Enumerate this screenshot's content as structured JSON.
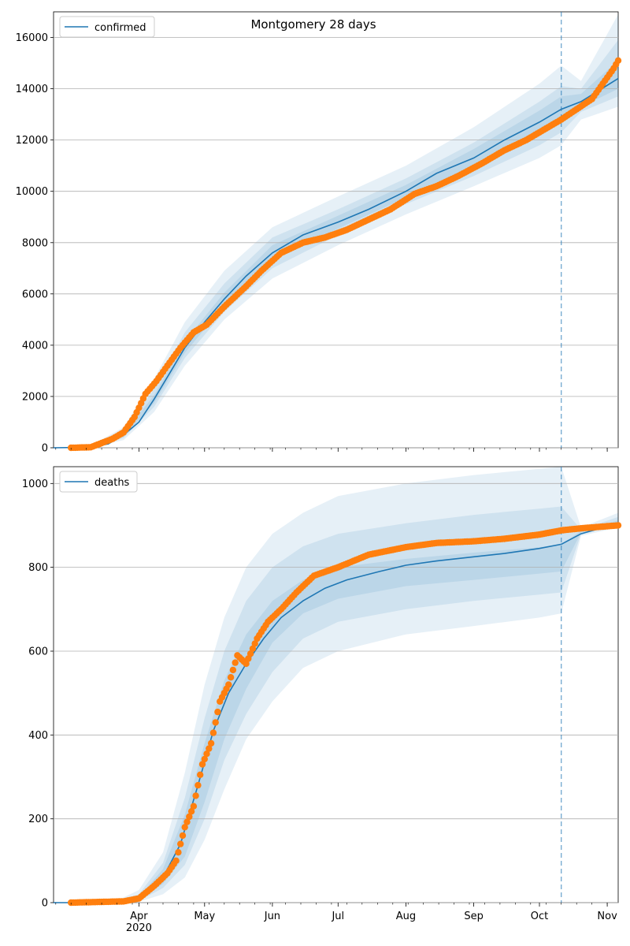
{
  "figure": {
    "title": "Montgomery 28 days"
  },
  "colors": {
    "model": "#1f77b4",
    "observed": "#ff7f0e",
    "grid": "#b0b0b0",
    "band": "#1f77b4"
  },
  "chart_data": [
    {
      "type": "line",
      "name": "confirmed",
      "xaxis_type": "date",
      "xlim": [
        "2020-02-22",
        "2020-11-06"
      ],
      "ylim": [
        0,
        17000
      ],
      "y_ticks": [
        0,
        2000,
        4000,
        6000,
        8000,
        10000,
        12000,
        14000,
        16000
      ],
      "x_tick_labels_shown": false,
      "grid": "horizontal",
      "legend": {
        "position": "top-left",
        "entries": [
          "confirmed"
        ]
      },
      "forecast_start": "2020-10-11",
      "series": [
        {
          "name": "confirmed",
          "kind": "model-median",
          "x": [
            "2020-02-22",
            "2020-03-10",
            "2020-03-18",
            "2020-03-25",
            "2020-04-01",
            "2020-04-08",
            "2020-04-15",
            "2020-04-22",
            "2020-05-01",
            "2020-05-10",
            "2020-05-20",
            "2020-06-01",
            "2020-06-15",
            "2020-07-01",
            "2020-07-15",
            "2020-08-01",
            "2020-08-15",
            "2020-09-01",
            "2020-09-15",
            "2020-10-01",
            "2020-10-11",
            "2020-10-20",
            "2020-11-06"
          ],
          "y": [
            0,
            20,
            150,
            500,
            1000,
            1900,
            2900,
            3900,
            4900,
            5800,
            6700,
            7600,
            8300,
            8800,
            9300,
            10000,
            10700,
            11300,
            12000,
            12700,
            13200,
            13500,
            14400
          ]
        },
        {
          "name": "confirmed",
          "kind": "observed",
          "x": [
            "2020-03-01",
            "2020-03-10",
            "2020-03-20",
            "2020-03-25",
            "2020-03-30",
            "2020-04-04",
            "2020-04-09",
            "2020-04-14",
            "2020-04-20",
            "2020-04-26",
            "2020-05-02",
            "2020-05-10",
            "2020-05-20",
            "2020-05-27",
            "2020-06-05",
            "2020-06-15",
            "2020-06-25",
            "2020-07-05",
            "2020-07-15",
            "2020-07-25",
            "2020-08-05",
            "2020-08-15",
            "2020-08-25",
            "2020-09-05",
            "2020-09-15",
            "2020-09-25",
            "2020-10-05",
            "2020-10-11",
            "2020-10-18",
            "2020-10-25",
            "2020-10-30",
            "2020-11-04",
            "2020-11-06"
          ],
          "y": [
            0,
            20,
            350,
            600,
            1200,
            2100,
            2600,
            3200,
            3900,
            4500,
            4800,
            5500,
            6300,
            6900,
            7600,
            8000,
            8200,
            8500,
            8900,
            9300,
            9900,
            10200,
            10600,
            11100,
            11600,
            12000,
            12500,
            12800,
            13200,
            13600,
            14200,
            14800,
            15100
          ]
        }
      ],
      "bands": [
        {
          "level": "outer",
          "x": [
            "2020-03-10",
            "2020-03-25",
            "2020-04-08",
            "2020-04-22",
            "2020-05-10",
            "2020-06-01",
            "2020-07-01",
            "2020-08-01",
            "2020-09-01",
            "2020-10-01",
            "2020-10-11",
            "2020-10-20",
            "2020-11-06"
          ],
          "lower": [
            0,
            300,
            1400,
            3200,
            5000,
            6600,
            7900,
            9100,
            10200,
            11300,
            11800,
            12800,
            13300
          ],
          "upper": [
            80,
            800,
            2700,
            4900,
            6900,
            8600,
            9800,
            11000,
            12500,
            14200,
            14900,
            14300,
            16900
          ]
        },
        {
          "level": "middle",
          "x": [
            "2020-03-10",
            "2020-03-25",
            "2020-04-08",
            "2020-04-22",
            "2020-05-10",
            "2020-06-01",
            "2020-07-01",
            "2020-08-01",
            "2020-09-01",
            "2020-10-01",
            "2020-10-11",
            "2020-10-20",
            "2020-11-06"
          ],
          "lower": [
            0,
            380,
            1600,
            3500,
            5300,
            7000,
            8300,
            9500,
            10600,
            11800,
            12300,
            13100,
            13700
          ],
          "upper": [
            60,
            650,
            2300,
            4500,
            6400,
            8200,
            9300,
            10500,
            11900,
            13500,
            14100,
            14000,
            15900
          ]
        },
        {
          "level": "inner",
          "x": [
            "2020-03-10",
            "2020-03-25",
            "2020-04-08",
            "2020-04-22",
            "2020-05-10",
            "2020-06-01",
            "2020-07-01",
            "2020-08-01",
            "2020-09-01",
            "2020-10-01",
            "2020-10-11",
            "2020-10-20",
            "2020-11-06"
          ],
          "lower": [
            10,
            430,
            1750,
            3700,
            5550,
            7300,
            8550,
            9750,
            10950,
            12250,
            12700,
            13300,
            14000
          ],
          "upper": [
            40,
            570,
            2050,
            4150,
            6050,
            7900,
            9050,
            10250,
            11650,
            13150,
            13700,
            13800,
            15100
          ]
        }
      ]
    },
    {
      "type": "line",
      "name": "deaths",
      "xaxis_type": "date",
      "xlim": [
        "2020-02-22",
        "2020-11-06"
      ],
      "ylim": [
        0,
        1040
      ],
      "y_ticks": [
        0,
        200,
        400,
        600,
        800,
        1000
      ],
      "x_tick_labels": [
        "Apr\n2020",
        "May",
        "Jun",
        "Jul",
        "Aug",
        "Sep",
        "Oct",
        "Nov"
      ],
      "x_ticks": [
        "2020-04-01",
        "2020-05-01",
        "2020-06-01",
        "2020-07-01",
        "2020-08-01",
        "2020-09-01",
        "2020-10-01",
        "2020-11-01"
      ],
      "grid": "horizontal",
      "legend": {
        "position": "top-left",
        "entries": [
          "deaths"
        ]
      },
      "forecast_start": "2020-10-11",
      "series": [
        {
          "name": "deaths",
          "kind": "model-median",
          "x": [
            "2020-02-22",
            "2020-03-20",
            "2020-03-28",
            "2020-04-05",
            "2020-04-12",
            "2020-04-20",
            "2020-04-28",
            "2020-05-05",
            "2020-05-12",
            "2020-05-20",
            "2020-05-28",
            "2020-06-05",
            "2020-06-15",
            "2020-06-25",
            "2020-07-05",
            "2020-07-20",
            "2020-08-01",
            "2020-08-15",
            "2020-09-01",
            "2020-09-15",
            "2020-10-01",
            "2020-10-11",
            "2020-10-20",
            "2020-11-06"
          ],
          "y": [
            0,
            0,
            5,
            20,
            60,
            140,
            280,
            410,
            500,
            570,
            630,
            680,
            720,
            750,
            770,
            790,
            805,
            815,
            825,
            833,
            845,
            855,
            880,
            905
          ]
        },
        {
          "name": "deaths",
          "kind": "observed",
          "x": [
            "2020-03-01",
            "2020-03-25",
            "2020-04-01",
            "2020-04-08",
            "2020-04-14",
            "2020-04-18",
            "2020-04-22",
            "2020-04-26",
            "2020-04-30",
            "2020-05-04",
            "2020-05-08",
            "2020-05-12",
            "2020-05-16",
            "2020-05-20",
            "2020-05-25",
            "2020-05-30",
            "2020-06-05",
            "2020-06-12",
            "2020-06-20",
            "2020-07-01",
            "2020-07-15",
            "2020-08-01",
            "2020-08-15",
            "2020-09-01",
            "2020-09-15",
            "2020-10-01",
            "2020-10-11",
            "2020-10-20",
            "2020-11-06"
          ],
          "y": [
            0,
            3,
            10,
            40,
            70,
            100,
            180,
            230,
            330,
            380,
            480,
            520,
            590,
            570,
            630,
            670,
            700,
            740,
            780,
            800,
            830,
            848,
            858,
            862,
            868,
            878,
            888,
            893,
            900
          ]
        }
      ],
      "bands": [
        {
          "level": "outer",
          "x": [
            "2020-03-20",
            "2020-04-01",
            "2020-04-12",
            "2020-04-22",
            "2020-05-01",
            "2020-05-10",
            "2020-05-20",
            "2020-06-01",
            "2020-06-15",
            "2020-07-01",
            "2020-08-01",
            "2020-09-01",
            "2020-10-01",
            "2020-10-11",
            "2020-10-20",
            "2020-11-06"
          ],
          "lower": [
            0,
            2,
            20,
            60,
            150,
            270,
            390,
            480,
            560,
            600,
            640,
            660,
            680,
            690,
            875,
            895
          ],
          "upper": [
            0,
            30,
            120,
            310,
            520,
            680,
            800,
            880,
            930,
            970,
            1000,
            1020,
            1035,
            1040,
            895,
            930
          ]
        },
        {
          "level": "middle",
          "x": [
            "2020-03-20",
            "2020-04-01",
            "2020-04-12",
            "2020-04-22",
            "2020-05-01",
            "2020-05-10",
            "2020-05-20",
            "2020-06-01",
            "2020-06-15",
            "2020-07-01",
            "2020-08-01",
            "2020-09-01",
            "2020-10-01",
            "2020-10-11",
            "2020-10-20",
            "2020-11-06"
          ],
          "lower": [
            0,
            4,
            35,
            90,
            200,
            340,
            450,
            550,
            630,
            670,
            700,
            720,
            735,
            740,
            880,
            900
          ],
          "upper": [
            0,
            20,
            95,
            250,
            440,
            600,
            720,
            800,
            850,
            880,
            905,
            925,
            940,
            945,
            890,
            920
          ]
        },
        {
          "level": "inner",
          "x": [
            "2020-03-20",
            "2020-04-01",
            "2020-04-12",
            "2020-04-22",
            "2020-05-01",
            "2020-05-10",
            "2020-05-20",
            "2020-06-01",
            "2020-06-15",
            "2020-07-01",
            "2020-08-01",
            "2020-09-01",
            "2020-10-01",
            "2020-10-11",
            "2020-10-20",
            "2020-11-06"
          ],
          "lower": [
            0,
            6,
            45,
            110,
            240,
            390,
            510,
            620,
            690,
            725,
            755,
            770,
            785,
            790,
            883,
            903
          ],
          "upper": [
            0,
            14,
            80,
            210,
            380,
            530,
            640,
            720,
            770,
            800,
            820,
            835,
            848,
            855,
            887,
            912
          ]
        }
      ]
    }
  ]
}
